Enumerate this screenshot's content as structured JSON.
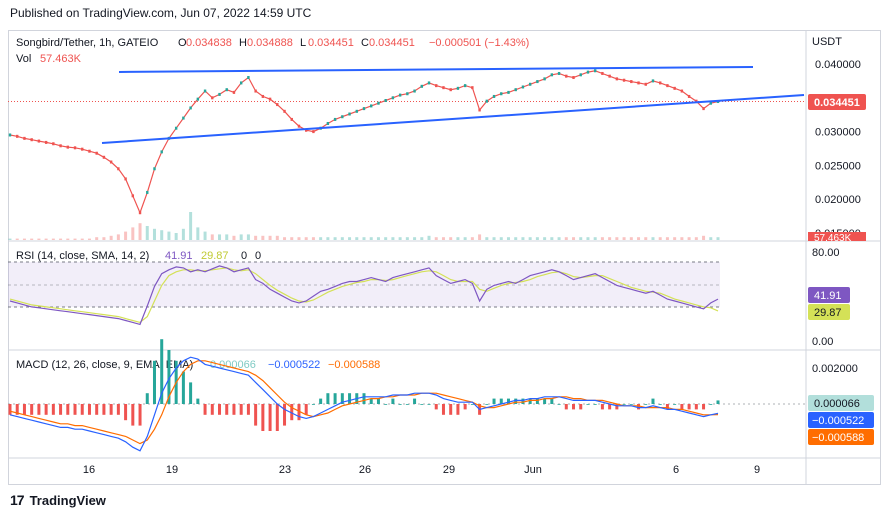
{
  "header": {
    "published": "Published on TradingView.com, Jun 07, 2022 14:59 UTC"
  },
  "footer": {
    "brand": "TradingView"
  },
  "colors": {
    "up": "#26a69a",
    "down": "#ef5350",
    "trendline": "#2962ff",
    "rsi": "#7e57c2",
    "rsi_ma": "#d4e157",
    "macd": "#2962ff",
    "signal": "#ff6d00",
    "hist_up": "#26a69a",
    "hist_down": "#ef5350",
    "hist_pale": "#b2dfdb"
  },
  "chart_data": {
    "type": "candlestick",
    "symbol_line": {
      "name": "Songbird/Tether, 1h, GATEIO",
      "o_label": "O",
      "o": "0.034838",
      "h_label": "H",
      "h": "0.034888",
      "l_label": "L",
      "l": "0.034451",
      "c_label": "C",
      "c": "0.034451",
      "change": "−0.000501 (−1.43%)"
    },
    "volume_line": {
      "label": "Vol",
      "value": "57.463K"
    },
    "currency": "USDT",
    "price_axis": {
      "ticks": [
        "0.040000",
        "0.035000",
        "0.030000",
        "0.025000",
        "0.020000",
        "0.015000"
      ],
      "min": 0.0135,
      "max": 0.0418
    },
    "last_price": "0.034451",
    "volume_badge": "57.463K",
    "x_ticks": [
      "16",
      "19",
      "23",
      "26",
      "29",
      "Jun",
      "6",
      "9"
    ],
    "series": [
      {
        "name": "Price",
        "values": [
          0.0295,
          0.0293,
          0.029,
          0.0288,
          0.0286,
          0.0284,
          0.0282,
          0.0279,
          0.0277,
          0.0276,
          0.0274,
          0.0271,
          0.0268,
          0.0262,
          0.0255,
          0.0245,
          0.023,
          0.0205,
          0.018,
          0.021,
          0.0245,
          0.027,
          0.029,
          0.0305,
          0.032,
          0.0335,
          0.0348,
          0.036,
          0.035,
          0.0355,
          0.0362,
          0.0358,
          0.0372,
          0.038,
          0.036,
          0.0352,
          0.0348,
          0.034,
          0.033,
          0.0318,
          0.0308,
          0.0302,
          0.03,
          0.0305,
          0.0312,
          0.0318,
          0.0322,
          0.0326,
          0.033,
          0.0334,
          0.0338,
          0.0342,
          0.0346,
          0.035,
          0.0354,
          0.0356,
          0.036,
          0.0367,
          0.0372,
          0.0368,
          0.0365,
          0.0362,
          0.0364,
          0.0368,
          0.0365,
          0.0332,
          0.0345,
          0.0352,
          0.0356,
          0.0358,
          0.0362,
          0.0366,
          0.037,
          0.0374,
          0.0378,
          0.0384,
          0.0386,
          0.0382,
          0.038,
          0.0384,
          0.0388,
          0.039,
          0.0386,
          0.0382,
          0.0378,
          0.0376,
          0.0374,
          0.0372,
          0.037,
          0.0375,
          0.0372,
          0.0368,
          0.0364,
          0.036,
          0.0352,
          0.0345,
          0.0334,
          0.0342,
          0.03445
        ]
      },
      {
        "name": "Volume",
        "values": [
          1,
          1,
          1,
          1,
          1,
          1,
          1,
          1,
          1,
          1,
          1,
          1,
          2,
          2,
          3,
          4,
          6,
          9,
          12,
          10,
          8,
          7,
          6,
          5,
          8,
          20,
          9,
          6,
          4,
          4,
          4,
          3,
          4,
          4,
          3,
          3,
          3,
          3,
          2,
          2,
          2,
          2,
          2,
          2,
          2,
          2,
          2,
          2,
          2,
          2,
          2,
          2,
          2,
          2,
          2,
          2,
          2,
          2,
          3,
          2,
          2,
          2,
          2,
          2,
          2,
          4,
          2,
          2,
          2,
          2,
          2,
          2,
          2,
          2,
          2,
          2,
          2,
          2,
          2,
          2,
          2,
          2,
          2,
          2,
          2,
          2,
          2,
          2,
          2,
          2,
          2,
          2,
          2,
          2,
          2,
          2,
          3,
          2,
          2
        ]
      }
    ],
    "rsi": {
      "label": "RSI (14, close, SMA, 14, 2)",
      "value": "41.91",
      "ma_value": "29.87",
      "zero_a": "0",
      "zero_b": "0",
      "ticks": [
        "80.00",
        "0.00"
      ],
      "badge_rsi": "41.91",
      "badge_ma": "29.87",
      "values": [
        40,
        38,
        36,
        34,
        33,
        32,
        31,
        30,
        29,
        28,
        27,
        26,
        25,
        24,
        23,
        22,
        20,
        18,
        16,
        35,
        55,
        68,
        72,
        75,
        74,
        70,
        72,
        70,
        73,
        76,
        74,
        70,
        72,
        74,
        62,
        58,
        52,
        48,
        44,
        40,
        38,
        40,
        45,
        50,
        52,
        55,
        58,
        60,
        60,
        62,
        64,
        62,
        60,
        64,
        66,
        68,
        70,
        72,
        74,
        66,
        62,
        58,
        60,
        62,
        58,
        40,
        52,
        56,
        58,
        60,
        58,
        62,
        66,
        68,
        70,
        72,
        70,
        66,
        62,
        64,
        66,
        68,
        64,
        60,
        56,
        54,
        52,
        50,
        48,
        50,
        46,
        42,
        40,
        38,
        36,
        34,
        32,
        38,
        41.91
      ],
      "ma_values": [
        42,
        40,
        38,
        36,
        35,
        34,
        33,
        32,
        31,
        30,
        29,
        28,
        27,
        26,
        25,
        24,
        22,
        20,
        18,
        24,
        40,
        56,
        66,
        70,
        72,
        72,
        71,
        71,
        72,
        73,
        74,
        72,
        71,
        72,
        68,
        62,
        56,
        51,
        47,
        43,
        40,
        39,
        41,
        45,
        49,
        52,
        55,
        57,
        59,
        60,
        62,
        62,
        61,
        62,
        64,
        66,
        68,
        70,
        71,
        70,
        66,
        62,
        60,
        60,
        60,
        52,
        50,
        53,
        56,
        58,
        59,
        60,
        62,
        65,
        67,
        69,
        70,
        68,
        65,
        64,
        65,
        66,
        66,
        63,
        60,
        57,
        54,
        52,
        50,
        49,
        48,
        45,
        42,
        40,
        38,
        36,
        34,
        33,
        29.87
      ]
    },
    "macd": {
      "label": "MACD (12, 26, close, 9, EMA, EMA)",
      "hist_value": "0.000066",
      "macd_value": "−0.000522",
      "signal_value": "−0.000588",
      "ticks": [
        "0.002000"
      ],
      "badge_hist": "0.000066",
      "badge_macd": "−0.000522",
      "badge_signal": "−0.000588",
      "macd_values": [
        -0.0006,
        -0.0007,
        -0.0008,
        -0.0009,
        -0.001,
        -0.0011,
        -0.0012,
        -0.0013,
        -0.0013,
        -0.0014,
        -0.0014,
        -0.0015,
        -0.0016,
        -0.0017,
        -0.0018,
        -0.0019,
        -0.0021,
        -0.0024,
        -0.0026,
        -0.0018,
        -0.0006,
        0.0006,
        0.0014,
        0.002,
        0.0024,
        0.0026,
        0.0025,
        0.0022,
        0.0021,
        0.002,
        0.0019,
        0.0018,
        0.0017,
        0.0016,
        0.0012,
        0.0008,
        0.0004,
        0.0,
        -0.0003,
        -0.0005,
        -0.0007,
        -0.0008,
        -0.0007,
        -0.0005,
        -0.0003,
        -0.0001,
        0.0001,
        0.0002,
        0.0003,
        0.0004,
        0.0004,
        0.0004,
        0.0004,
        0.0005,
        0.0005,
        0.0005,
        0.0006,
        0.0006,
        0.0006,
        0.0005,
        0.0003,
        0.0002,
        0.0001,
        0.0001,
        0.0001,
        -0.0003,
        -0.0002,
        -0.0001,
        0.0,
        0.0001,
        0.0002,
        0.0002,
        0.0003,
        0.0003,
        0.0004,
        0.0004,
        0.0004,
        0.0003,
        0.0002,
        0.0002,
        0.0002,
        0.0002,
        0.0001,
        0.0,
        -0.0001,
        -0.0001,
        -0.0001,
        -0.0002,
        -0.0002,
        -0.0001,
        -0.0002,
        -0.0003,
        -0.0003,
        -0.0004,
        -0.0005,
        -0.0006,
        -0.0007,
        -0.0006,
        -0.000522
      ],
      "signal_values": [
        -0.0004,
        -0.0005,
        -0.0006,
        -0.0007,
        -0.0008,
        -0.0009,
        -0.001,
        -0.0011,
        -0.0011,
        -0.0012,
        -0.0012,
        -0.0013,
        -0.0014,
        -0.0015,
        -0.0016,
        -0.0017,
        -0.0018,
        -0.002,
        -0.0022,
        -0.002,
        -0.0014,
        -0.0006,
        0.0004,
        0.0012,
        0.0018,
        0.0022,
        0.0024,
        0.0024,
        0.0023,
        0.0022,
        0.0021,
        0.002,
        0.0019,
        0.0018,
        0.0016,
        0.0013,
        0.0009,
        0.0005,
        0.0001,
        -0.0002,
        -0.0004,
        -0.0006,
        -0.0007,
        -0.0006,
        -0.0005,
        -0.0003,
        -0.0001,
        0.0,
        0.0001,
        0.0002,
        0.0003,
        0.0003,
        0.0004,
        0.0004,
        0.0005,
        0.0005,
        0.0005,
        0.0006,
        0.0006,
        0.0006,
        0.0005,
        0.0004,
        0.0003,
        0.0002,
        0.0001,
        -0.0001,
        -0.0002,
        -0.0002,
        -0.0001,
        0.0,
        0.0001,
        0.0001,
        0.0002,
        0.0002,
        0.0003,
        0.0003,
        0.0004,
        0.0004,
        0.0003,
        0.0003,
        0.0002,
        0.0002,
        0.0002,
        0.0001,
        0.0,
        -0.0001,
        -0.0001,
        -0.0001,
        -0.0002,
        -0.0002,
        -0.0002,
        -0.0002,
        -0.0003,
        -0.0003,
        -0.0004,
        -0.0005,
        -0.0006,
        -0.0006,
        -0.000588
      ]
    }
  }
}
